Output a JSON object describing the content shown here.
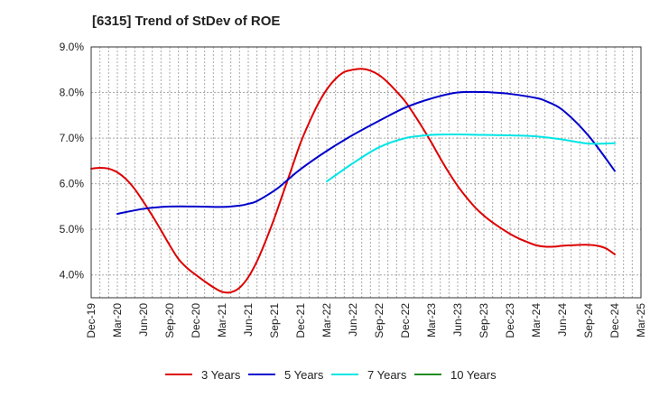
{
  "chart_data": {
    "type": "line",
    "title": "[6315]  Trend of StDev of ROE",
    "xlabel": "",
    "ylabel": "",
    "x_ticks": [
      "Dec-19",
      "Mar-20",
      "Jun-20",
      "Sep-20",
      "Dec-20",
      "Mar-21",
      "Jun-21",
      "Sep-21",
      "Dec-21",
      "Mar-22",
      "Jun-22",
      "Sep-22",
      "Dec-22",
      "Mar-23",
      "Jun-23",
      "Sep-23",
      "Dec-23",
      "Mar-24",
      "Jun-24",
      "Sep-24",
      "Dec-24",
      "Mar-25"
    ],
    "y_ticks": [
      "4.0%",
      "5.0%",
      "6.0%",
      "7.0%",
      "8.0%",
      "9.0%"
    ],
    "ylim": [
      3.5,
      9.0
    ],
    "grid": true,
    "legend_position": "bottom",
    "series": [
      {
        "name": "3 Years",
        "color": "#dd0000",
        "x": [
          "Dec-19",
          "Jan-20",
          "Feb-20",
          "Mar-20",
          "Apr-20",
          "May-20",
          "Jun-20",
          "Jul-20",
          "Aug-20",
          "Sep-20",
          "Oct-20",
          "Nov-20",
          "Dec-20",
          "Jan-21",
          "Feb-21",
          "Mar-21",
          "Apr-21",
          "May-21",
          "Jun-21",
          "Jul-21",
          "Aug-21",
          "Sep-21",
          "Oct-21",
          "Nov-21",
          "Dec-21",
          "Jan-22",
          "Feb-22",
          "Mar-22",
          "Apr-22",
          "May-22",
          "Jun-22",
          "Jul-22",
          "Aug-22",
          "Sep-22",
          "Oct-22",
          "Nov-22",
          "Dec-22",
          "Jan-23",
          "Feb-23",
          "Mar-23",
          "Apr-23",
          "May-23",
          "Jun-23",
          "Jul-23",
          "Aug-23",
          "Sep-23",
          "Oct-23",
          "Nov-23",
          "Dec-23",
          "Jan-24",
          "Feb-24",
          "Mar-24",
          "Apr-24",
          "May-24",
          "Jun-24",
          "Jul-24",
          "Aug-24",
          "Sep-24",
          "Oct-24",
          "Nov-24",
          "Dec-24"
        ],
        "values": [
          6.33,
          6.35,
          6.33,
          6.25,
          6.1,
          5.88,
          5.6,
          5.3,
          4.98,
          4.65,
          4.35,
          4.15,
          4.0,
          3.86,
          3.73,
          3.63,
          3.62,
          3.72,
          3.95,
          4.3,
          4.75,
          5.25,
          5.8,
          6.35,
          6.9,
          7.35,
          7.75,
          8.07,
          8.3,
          8.45,
          8.5,
          8.52,
          8.48,
          8.38,
          8.22,
          8.02,
          7.8,
          7.52,
          7.22,
          6.9,
          6.56,
          6.24,
          5.95,
          5.7,
          5.48,
          5.3,
          5.15,
          5.02,
          4.9,
          4.8,
          4.72,
          4.65,
          4.62,
          4.62,
          4.64,
          4.65,
          4.66,
          4.66,
          4.64,
          4.58,
          4.45
        ]
      },
      {
        "name": "5 Years",
        "color": "#0000cc",
        "x": [
          "Mar-20",
          "Jun-20",
          "Sep-20",
          "Dec-20",
          "Mar-21",
          "May-21",
          "Jun-21",
          "Jul-21",
          "Sep-21",
          "Oct-21",
          "Dec-21",
          "Mar-22",
          "Jun-22",
          "Sep-22",
          "Dec-22",
          "Mar-23",
          "Jun-23",
          "Sep-23",
          "Oct-23",
          "Dec-23",
          "Mar-24",
          "Apr-24",
          "Jun-24",
          "Sep-24",
          "Dec-24"
        ],
        "values": [
          5.34,
          5.45,
          5.5,
          5.5,
          5.49,
          5.52,
          5.56,
          5.62,
          5.85,
          6.0,
          6.32,
          6.72,
          7.07,
          7.38,
          7.67,
          7.87,
          8.0,
          8.01,
          8.0,
          7.97,
          7.88,
          7.82,
          7.62,
          7.05,
          6.28
        ]
      },
      {
        "name": "7 Years",
        "color": "#00e5e5",
        "x": [
          "Mar-22",
          "Jun-22",
          "Sep-22",
          "Dec-22",
          "Mar-23",
          "Jun-23",
          "Sep-23",
          "Dec-23",
          "Mar-24",
          "Jun-24",
          "Sep-24",
          "Dec-24"
        ],
        "values": [
          6.05,
          6.45,
          6.8,
          7.0,
          7.07,
          7.08,
          7.07,
          7.06,
          7.04,
          6.97,
          6.88,
          6.89
        ]
      },
      {
        "name": "10 Years",
        "color": "#228b22",
        "x": [],
        "values": []
      }
    ]
  }
}
